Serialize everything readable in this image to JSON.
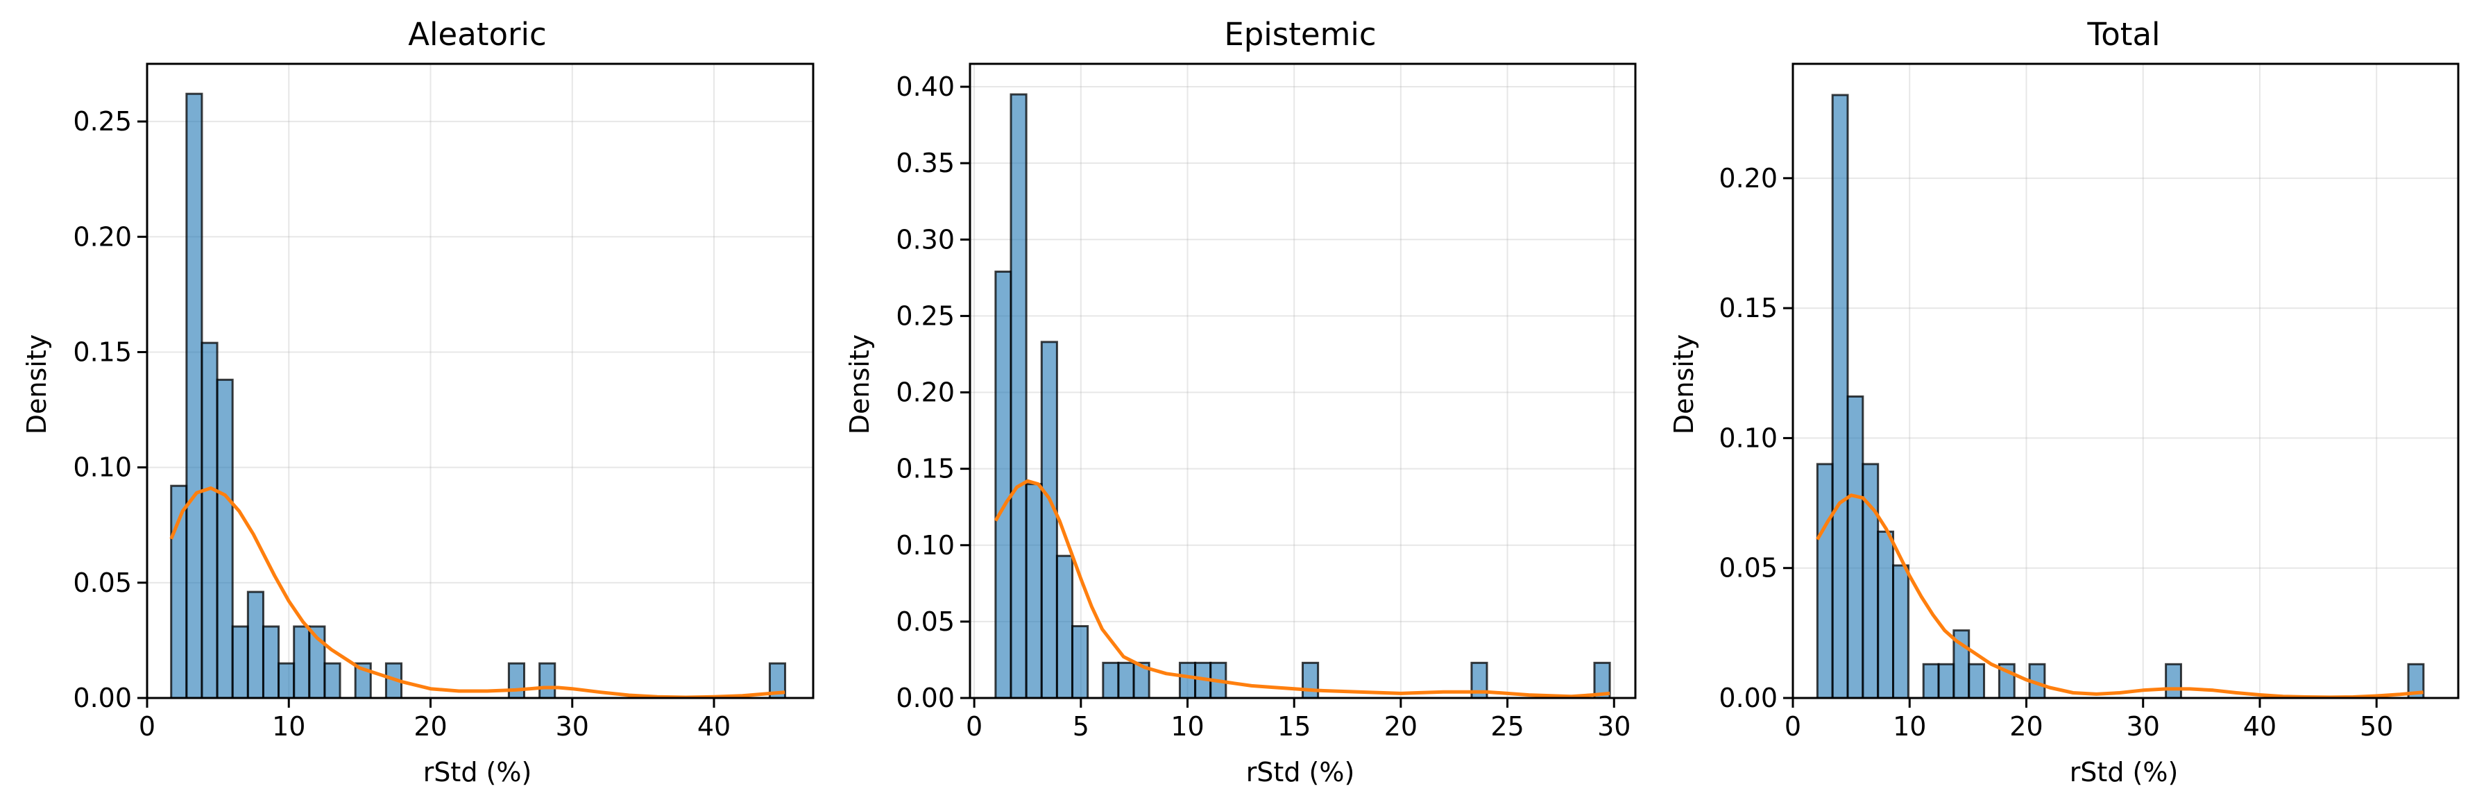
{
  "chart_data": [
    {
      "type": "bar",
      "title": "Aleatoric",
      "xlabel": "rStd (%)",
      "ylabel": "Density",
      "xlim": [
        0,
        47
      ],
      "ylim": [
        0,
        0.275
      ],
      "xticks": [
        0,
        10,
        20,
        30,
        40
      ],
      "xtick_labels": [
        "0",
        "10",
        "20",
        "30",
        "40"
      ],
      "yticks": [
        0,
        0.05,
        0.1,
        0.15,
        0.2,
        0.25
      ],
      "ytick_labels": [
        "0.00",
        "0.05",
        "0.10",
        "0.15",
        "0.20",
        "0.25"
      ],
      "grid": true,
      "bins": {
        "start": 1.7,
        "width": 1.083
      },
      "values": [
        0.092,
        0.262,
        0.154,
        0.138,
        0.031,
        0.046,
        0.031,
        0.015,
        0.031,
        0.031,
        0.015,
        0,
        0.015,
        0,
        0.015,
        0,
        0,
        0,
        0,
        0,
        0,
        0,
        0.015,
        0,
        0.015,
        0,
        0,
        0,
        0,
        0,
        0,
        0,
        0,
        0,
        0,
        0,
        0,
        0,
        0,
        0.015
      ],
      "kde": {
        "x": [
          1.7,
          2.5,
          3.5,
          4.5,
          5.5,
          6.5,
          7.5,
          9,
          10,
          11,
          12,
          13,
          14,
          15,
          16,
          18,
          20,
          22,
          24,
          26,
          28,
          29,
          30,
          32,
          34,
          36,
          38,
          40,
          42,
          44,
          45
        ],
        "y": [
          0.069,
          0.081,
          0.089,
          0.091,
          0.088,
          0.081,
          0.071,
          0.053,
          0.042,
          0.033,
          0.026,
          0.021,
          0.017,
          0.013,
          0.011,
          0.007,
          0.004,
          0.003,
          0.003,
          0.0035,
          0.0045,
          0.0045,
          0.004,
          0.0025,
          0.0012,
          0.0005,
          0.0003,
          0.0005,
          0.001,
          0.002,
          0.0025
        ]
      }
    },
    {
      "type": "bar",
      "title": "Epistemic",
      "xlabel": "rStd (%)",
      "ylabel": "Density",
      "xlim": [
        -0.2,
        31
      ],
      "ylim": [
        0,
        0.415
      ],
      "xticks": [
        0,
        5,
        10,
        15,
        20,
        25,
        30
      ],
      "xtick_labels": [
        "0",
        "5",
        "10",
        "15",
        "20",
        "25",
        "30"
      ],
      "yticks": [
        0,
        0.05,
        0.1,
        0.15,
        0.2,
        0.25,
        0.3,
        0.35,
        0.4
      ],
      "ytick_labels": [
        "0.00",
        "0.05",
        "0.10",
        "0.15",
        "0.20",
        "0.25",
        "0.30",
        "0.35",
        "0.40"
      ],
      "grid": true,
      "bins": {
        "start": 1.0,
        "width": 0.72
      },
      "values": [
        0.279,
        0.395,
        0.14,
        0.233,
        0.093,
        0.047,
        0,
        0.023,
        0.023,
        0.023,
        0,
        0,
        0.023,
        0.023,
        0.023,
        0,
        0,
        0,
        0,
        0,
        0.023,
        0,
        0,
        0,
        0,
        0,
        0,
        0,
        0,
        0,
        0,
        0.023,
        0,
        0,
        0,
        0,
        0,
        0,
        0,
        0.023
      ],
      "kde": {
        "x": [
          1,
          1.5,
          2,
          2.5,
          3,
          3.5,
          4,
          4.5,
          5,
          5.5,
          6,
          7,
          8,
          9,
          10,
          11,
          12,
          13,
          14,
          15,
          16,
          18,
          20,
          22,
          24,
          26,
          28,
          29,
          29.8
        ],
        "y": [
          0.116,
          0.128,
          0.138,
          0.142,
          0.14,
          0.131,
          0.116,
          0.097,
          0.078,
          0.06,
          0.045,
          0.027,
          0.02,
          0.016,
          0.014,
          0.012,
          0.01,
          0.008,
          0.007,
          0.006,
          0.005,
          0.004,
          0.003,
          0.004,
          0.004,
          0.002,
          0.001,
          0.002,
          0.003
        ]
      }
    },
    {
      "type": "bar",
      "title": "Total",
      "xlabel": "rStd (%)",
      "ylabel": "Density",
      "xlim": [
        0,
        57
      ],
      "ylim": [
        0,
        0.244
      ],
      "xticks": [
        0,
        10,
        20,
        30,
        40,
        50
      ],
      "xtick_labels": [
        "0",
        "10",
        "20",
        "30",
        "40",
        "50"
      ],
      "yticks": [
        0,
        0.05,
        0.1,
        0.15,
        0.2
      ],
      "ytick_labels": [
        "0.00",
        "0.05",
        "0.10",
        "0.15",
        "0.20"
      ],
      "grid": true,
      "bins": {
        "start": 2.1,
        "width": 1.298
      },
      "values": [
        0.09,
        0.232,
        0.116,
        0.09,
        0.064,
        0.051,
        0,
        0.013,
        0.013,
        0.026,
        0.013,
        0,
        0.013,
        0,
        0.013,
        0,
        0,
        0,
        0,
        0,
        0,
        0,
        0,
        0.013,
        0,
        0,
        0,
        0,
        0,
        0,
        0,
        0,
        0,
        0,
        0,
        0,
        0,
        0,
        0,
        0.013
      ],
      "kde": {
        "x": [
          2.1,
          3,
          4,
          5,
          6,
          7,
          8,
          9,
          10,
          11,
          12,
          13,
          14,
          15,
          16,
          17,
          18,
          19,
          20,
          22,
          24,
          26,
          28,
          30,
          32,
          34,
          36,
          38,
          40,
          42,
          44,
          46,
          48,
          50,
          52,
          54
        ],
        "y": [
          0.061,
          0.068,
          0.075,
          0.078,
          0.077,
          0.072,
          0.065,
          0.056,
          0.047,
          0.039,
          0.032,
          0.026,
          0.022,
          0.019,
          0.016,
          0.013,
          0.011,
          0.009,
          0.007,
          0.004,
          0.002,
          0.0015,
          0.002,
          0.003,
          0.0035,
          0.0035,
          0.003,
          0.002,
          0.0012,
          0.0006,
          0.0004,
          0.0003,
          0.0004,
          0.0008,
          0.0014,
          0.0022
        ]
      }
    }
  ],
  "colors": {
    "bar_fill": "#1f77b4",
    "bar_edge": "#000000",
    "kde_line": "#ff7f0e",
    "grid": "#b0b0b0",
    "axes": "#000000"
  }
}
